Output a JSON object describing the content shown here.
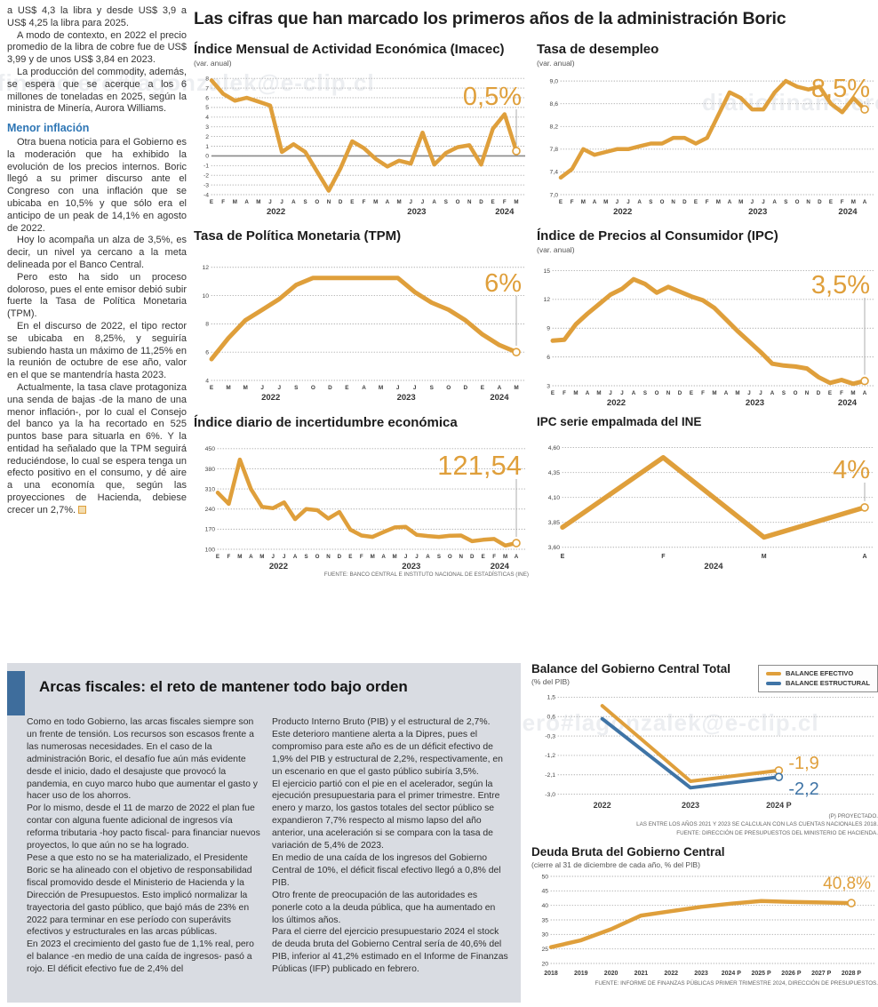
{
  "page": {
    "watermark": "diariofinanciero#lagonzalek@e-clip.cl"
  },
  "main": {
    "title": "Las cifras que han marcado los primeros años de la administración Boric"
  },
  "left_column": {
    "blocks": [
      {
        "type": "p",
        "first": true,
        "text": "a US$ 4,3 la libra y desde US$ 3,9 a US$ 4,25 la libra para 2025."
      },
      {
        "type": "p",
        "text": "A modo de contexto, en 2022 el precio promedio de la libra de cobre fue de US$ 3,99 y de unos US$ 3,84 en 2023."
      },
      {
        "type": "p",
        "text": "La producción del commodity, además, se espera que se acerque a los 6 millones de toneladas en 2025, según la ministra de Minería, Aurora Williams."
      },
      {
        "type": "subhead",
        "text": "Menor inflación"
      },
      {
        "type": "p",
        "text": "Otra buena noticia para el Gobierno es la moderación que ha exhibido la evolución de los precios internos. Boric llegó a su primer discurso ante el Congreso con una inflación que se ubicaba en 10,5% y que sólo era el anticipo de un peak de 14,1% en agosto de 2022."
      },
      {
        "type": "p",
        "text": "Hoy lo acompaña un alza de 3,5%, es decir, un nivel ya cercano a la meta delineada por el Banco Central."
      },
      {
        "type": "p",
        "text": "Pero esto ha sido un proceso doloroso, pues el ente emisor debió subir fuerte la Tasa de Política Monetaria (TPM)."
      },
      {
        "type": "p",
        "text": "En el discurso de 2022, el tipo rector se ubicaba en 8,25%, y seguiría subiendo hasta un máximo de 11,25% en la reunión de octubre de ese año, valor en el que se mantendría hasta 2023."
      },
      {
        "type": "p",
        "end_marker": true,
        "text": "Actualmente, la tasa clave protagoniza una senda de bajas -de la mano de una menor inflación-, por lo cual el Consejo del banco ya la ha recortado en 525 puntos base para situarla en 6%. Y la entidad ha señalado que la TPM seguirá reduciéndose, lo cual se espera tenga un efecto positivo en el consumo, y dé aire a una economía que, según las proyecciones de Hacienda, debiese crecer un 2,7%."
      }
    ]
  },
  "fiscal_section": {
    "title": "Arcas fiscales: el reto de mantener todo bajo orden",
    "col1_paragraphs": [
      "Como en todo Gobierno, las arcas fiscales siempre son un frente de tensión. Los recursos son escasos frente a las numerosas necesidades. En el caso de la administración Boric, el desafío fue aún más evidente desde el inicio, dado el desajuste que provocó la pandemia, en cuyo marco hubo que aumentar el gasto y hacer uso de los ahorros.",
      "Por lo mismo, desde el 11 de marzo de 2022 el plan fue contar con alguna fuente adicional de ingresos vía reforma tributaria -hoy pacto fiscal- para financiar nuevos proyectos, lo que aún no se ha logrado.",
      "Pese a que esto no se ha materializado, el Presidente Boric se ha alineado con el objetivo de responsabilidad fiscal promovido desde el Ministerio de Hacienda y la Dirección de Presupuestos. Esto implicó normalizar la trayectoria del gasto público, que bajó más de 23% en 2022 para terminar en ese período con superávits efectivos y estructurales en las arcas públicas.",
      "En 2023 el crecimiento del gasto fue de 1,1% real, pero el balance -en medio de una caída de ingresos- pasó a rojo. El déficit efectivo fue de 2,4% del"
    ],
    "col2_paragraphs": [
      "Producto Interno Bruto (PIB) y el estructural de 2,7%. Este deterioro mantiene alerta a la Dipres, pues el compromiso para este año es de un déficit efectivo de 1,9% del PIB y estructural de 2,2%, respectivamente, en un escenario en que el gasto público subiría 3,5%.",
      "El ejercicio partió con el pie en el acelerador, según la ejecución presupuestaria para el primer trimestre. Entre enero y marzo, los gastos totales del sector público se expandieron 7,7% respecto al mismo lapso del año anterior, una aceleración si se compara con la tasa de variación de 5,4% de 2023.",
      "En medio de una caída de los ingresos del Gobierno Central de 10%, el déficit fiscal efectivo llegó a 0,8% del PIB.",
      "Otro frente de preocupación de las autoridades es ponerle coto a la deuda pública, que ha aumentado en los últimos años.",
      "Para el cierre del ejercicio presupuestario 2024 el stock de deuda bruta del Gobierno Central sería de 40,6% del PIB, inferior al 41,2% estimado en el Informe de Finanzas Públicas (IFP) publicado en febrero."
    ]
  },
  "colors": {
    "orange": "#df9f3b",
    "blue": "#3f74a6",
    "grid": "#ababab",
    "drop_line": "#999999",
    "axis_text": "#444444",
    "month_text": "#3a3a3a"
  },
  "chart_data": [
    {
      "id": "imacec",
      "type": "line",
      "title": "Índice Mensual de Actividad Económica (Imacec)",
      "subtitle": "(var. anual)",
      "highlight": "0,5%",
      "ylim": [
        -4,
        8.2
      ],
      "zero_line": true,
      "y_ticks": [
        {
          "l": "8",
          "v": 8
        },
        {
          "l": "7",
          "v": 7
        },
        {
          "l": "6",
          "v": 6
        },
        {
          "l": "5",
          "v": 5
        },
        {
          "l": "4",
          "v": 4
        },
        {
          "l": "3",
          "v": 3
        },
        {
          "l": "2",
          "v": 2
        },
        {
          "l": "1",
          "v": 1
        },
        {
          "l": "0",
          "v": 0
        },
        {
          "l": "-1",
          "v": -1
        },
        {
          "l": "-2",
          "v": -2
        },
        {
          "l": "-3",
          "v": -3
        },
        {
          "l": "-4",
          "v": -4
        }
      ],
      "x_labels": [
        "E",
        "F",
        "M",
        "A",
        "M",
        "J",
        "J",
        "A",
        "S",
        "O",
        "N",
        "D",
        "E",
        "F",
        "M",
        "A",
        "M",
        "J",
        "J",
        "A",
        "S",
        "O",
        "N",
        "D",
        "E",
        "F",
        "M"
      ],
      "year_labels": [
        {
          "text": "2022",
          "at": 5.5
        },
        {
          "text": "2023",
          "at": 17.5
        },
        {
          "text": "2024",
          "at": 25
        }
      ],
      "series": [
        {
          "name": "imacec",
          "color": "orange",
          "values": [
            7.8,
            6.4,
            5.7,
            6.0,
            5.6,
            5.2,
            0.4,
            1.2,
            0.4,
            -1.6,
            -3.6,
            -1.3,
            1.5,
            0.8,
            -0.3,
            -1.1,
            -0.5,
            -0.8,
            2.4,
            -0.9,
            0.3,
            0.9,
            1.1,
            -0.9,
            2.8,
            4.3,
            0.5
          ]
        }
      ]
    },
    {
      "id": "desempleo",
      "type": "line",
      "title": "Tasa de desempleo",
      "subtitle": "(var. anual)",
      "highlight": "8,5%",
      "ylim": [
        7.0,
        9.08
      ],
      "y_ticks": [
        {
          "l": "9,0",
          "v": 9.0
        },
        {
          "l": "8,6",
          "v": 8.6
        },
        {
          "l": "8,2",
          "v": 8.2
        },
        {
          "l": "7,8",
          "v": 7.8
        },
        {
          "l": "7,4",
          "v": 7.4
        },
        {
          "l": "7,0",
          "v": 7.0
        }
      ],
      "x_labels": [
        "E",
        "F",
        "M",
        "A",
        "M",
        "J",
        "J",
        "A",
        "S",
        "O",
        "N",
        "D",
        "E",
        "F",
        "M",
        "A",
        "M",
        "J",
        "J",
        "A",
        "S",
        "O",
        "N",
        "D",
        "E",
        "F",
        "M",
        "A"
      ],
      "year_labels": [
        {
          "text": "2022",
          "at": 5.5
        },
        {
          "text": "2023",
          "at": 17.5
        },
        {
          "text": "2024",
          "at": 25.5
        }
      ],
      "series": [
        {
          "name": "desempleo",
          "color": "orange",
          "values": [
            7.3,
            7.45,
            7.8,
            7.7,
            7.75,
            7.8,
            7.8,
            7.85,
            7.9,
            7.9,
            8.0,
            8.0,
            7.9,
            8.0,
            8.4,
            8.8,
            8.7,
            8.5,
            8.5,
            8.8,
            9.0,
            8.9,
            8.85,
            8.9,
            8.6,
            8.45,
            8.7,
            8.5
          ]
        }
      ]
    },
    {
      "id": "tpm",
      "type": "line",
      "title": "Tasa de Política Monetaria (TPM)",
      "highlight": "6%",
      "ylim": [
        4,
        12.55
      ],
      "y_ticks": [
        {
          "l": "12",
          "v": 12
        },
        {
          "l": "10",
          "v": 10
        },
        {
          "l": "8",
          "v": 8
        },
        {
          "l": "6",
          "v": 6
        },
        {
          "l": "4",
          "v": 4
        }
      ],
      "x_labels": [
        "E",
        "M",
        "M",
        "J",
        "J",
        "S",
        "O",
        "D",
        "E",
        "A",
        "M",
        "J",
        "J",
        "S",
        "O",
        "D",
        "E",
        "A",
        "M"
      ],
      "year_labels": [
        {
          "text": "2022",
          "at": 3.5
        },
        {
          "text": "2023",
          "at": 11.5
        },
        {
          "text": "2024",
          "at": 17
        }
      ],
      "series": [
        {
          "name": "tpm",
          "color": "orange",
          "values": [
            5.5,
            7.0,
            8.25,
            9.0,
            9.75,
            10.75,
            11.25,
            11.25,
            11.25,
            11.25,
            11.25,
            11.25,
            10.25,
            9.5,
            9.0,
            8.25,
            7.25,
            6.5,
            6.0
          ]
        }
      ]
    },
    {
      "id": "ipc",
      "type": "line",
      "title": "Índice de Precios al Consumidor (IPC)",
      "subtitle": "(var. anual)",
      "highlight": "3,5%",
      "ylim": [
        3,
        15.6
      ],
      "y_ticks": [
        {
          "l": "15",
          "v": 15
        },
        {
          "l": "12",
          "v": 12
        },
        {
          "l": "9",
          "v": 9
        },
        {
          "l": "6",
          "v": 6
        },
        {
          "l": "3",
          "v": 3
        }
      ],
      "x_labels": [
        "E",
        "F",
        "M",
        "A",
        "M",
        "J",
        "J",
        "A",
        "S",
        "O",
        "N",
        "D",
        "E",
        "F",
        "M",
        "A",
        "M",
        "J",
        "J",
        "A",
        "S",
        "O",
        "N",
        "D",
        "E",
        "F",
        "M",
        "A"
      ],
      "year_labels": [
        {
          "text": "2022",
          "at": 5.5
        },
        {
          "text": "2023",
          "at": 17.5
        },
        {
          "text": "2024",
          "at": 25.5
        }
      ],
      "series": [
        {
          "name": "ipc",
          "color": "orange",
          "values": [
            7.7,
            7.8,
            9.4,
            10.5,
            11.5,
            12.5,
            13.1,
            14.1,
            13.6,
            12.7,
            13.3,
            12.8,
            12.3,
            11.9,
            11.1,
            9.9,
            8.7,
            7.6,
            6.5,
            5.3,
            5.1,
            5.0,
            4.8,
            3.9,
            3.3,
            3.6,
            3.2,
            3.5
          ]
        }
      ]
    },
    {
      "id": "incertidumbre",
      "type": "line",
      "title": "Índice diario de incertidumbre económica",
      "highlight": "121,54",
      "ylim": [
        100,
        465
      ],
      "y_ticks": [
        {
          "l": "450",
          "v": 450
        },
        {
          "l": "380",
          "v": 380
        },
        {
          "l": "310",
          "v": 310
        },
        {
          "l": "240",
          "v": 240
        },
        {
          "l": "170",
          "v": 170
        },
        {
          "l": "100",
          "v": 100
        }
      ],
      "x_labels": [
        "E",
        "F",
        "M",
        "A",
        "M",
        "J",
        "J",
        "A",
        "S",
        "O",
        "N",
        "D",
        "E",
        "F",
        "M",
        "A",
        "M",
        "J",
        "J",
        "A",
        "S",
        "O",
        "N",
        "D",
        "E",
        "F",
        "M",
        "A"
      ],
      "year_labels": [
        {
          "text": "2022",
          "at": 5.5
        },
        {
          "text": "2023",
          "at": 17.5
        },
        {
          "text": "2024",
          "at": 25.5
        }
      ],
      "series": [
        {
          "name": "incertidumbre",
          "color": "orange",
          "values": [
            297,
            258,
            412,
            310,
            248,
            243,
            263,
            205,
            240,
            236,
            207,
            230,
            168,
            148,
            143,
            160,
            176,
            178,
            150,
            146,
            143,
            147,
            148,
            128,
            133,
            136,
            113,
            121.54
          ]
        }
      ],
      "source": "FUENTE: BANCO CENTRAL E INSTITUTO NACIONAL DE ESTADÍSTICAS (INE)"
    },
    {
      "id": "ipc_ine",
      "type": "line",
      "title": "IPC serie empalmada del INE",
      "highlight": "4%",
      "ylim": [
        3.58,
        4.65
      ],
      "y_ticks": [
        {
          "l": "4,60",
          "v": 4.6
        },
        {
          "l": "4,35",
          "v": 4.35
        },
        {
          "l": "4,10",
          "v": 4.1
        },
        {
          "l": "3,85",
          "v": 3.85
        },
        {
          "l": "3,60",
          "v": 3.6
        }
      ],
      "x_labels": [
        "E",
        "F",
        "M",
        "A"
      ],
      "year_labels": [
        {
          "text": "2024",
          "at": 1.5
        }
      ],
      "series": [
        {
          "name": "ipc_empalmada",
          "color": "orange",
          "values": [
            3.8,
            4.5,
            3.7,
            4.0
          ]
        }
      ]
    },
    {
      "id": "balance",
      "type": "line",
      "title": "Balance del Gobierno Central Total",
      "subtitle": "(% del PIB)",
      "ylim": [
        -3.1,
        1.6
      ],
      "y_ticks": [
        {
          "l": "1,5",
          "v": 1.5
        },
        {
          "l": "0,6",
          "v": 0.6
        },
        {
          "l": "-0,3",
          "v": -0.3
        },
        {
          "l": "-1,2",
          "v": -1.2
        },
        {
          "l": "-2,1",
          "v": -2.1
        },
        {
          "l": "-3,0",
          "v": -3.0
        }
      ],
      "x_labels": [
        "2022",
        "2023",
        "2024 P"
      ],
      "legend": [
        {
          "label": "BALANCE EFECTIVO",
          "color": "orange"
        },
        {
          "label": "BALANCE ESTRUCTURAL",
          "color": "blue"
        }
      ],
      "series": [
        {
          "name": "balance_efectivo",
          "color": "orange",
          "values": [
            1.1,
            -2.4,
            -1.9
          ],
          "end_label": "-1,9",
          "label_dy": -2
        },
        {
          "name": "balance_estructural",
          "color": "blue",
          "values": [
            0.5,
            -2.7,
            -2.2
          ],
          "end_label": "-2,2",
          "label_dy": 20
        }
      ],
      "notes": [
        "(P) PROYECTADO.",
        "LAS ENTRE LOS AÑOS 2021 Y 2023 SE CALCULAN  CON LAS CUENTAS NACIONALES 2018.",
        "FUENTE: DIRECCIÓN DE PRESUPUESTOS DEL MINISTERIO DE HACIENDA."
      ]
    },
    {
      "id": "deuda",
      "type": "line",
      "title": "Deuda Bruta del Gobierno Central",
      "subtitle": "(cierre al 31 de diciembre de cada año, % del PIB)",
      "highlight": "40,8%",
      "ylim": [
        20,
        50
      ],
      "y_ticks": [
        {
          "l": "50",
          "v": 50
        },
        {
          "l": "45",
          "v": 45
        },
        {
          "l": "40",
          "v": 40
        },
        {
          "l": "35",
          "v": 35
        },
        {
          "l": "30",
          "v": 30
        },
        {
          "l": "25",
          "v": 25
        },
        {
          "l": "20",
          "v": 20
        }
      ],
      "x_labels": [
        "2018",
        "2019",
        "2020",
        "2021",
        "2022",
        "2023",
        "2024 P",
        "2025 P",
        "2026 P",
        "2027 P",
        "2028 P"
      ],
      "series": [
        {
          "name": "deuda_bruta",
          "color": "orange",
          "values": [
            25.6,
            28.0,
            31.8,
            36.5,
            38.0,
            39.5,
            40.6,
            41.5,
            41.2,
            41.0,
            40.8
          ]
        }
      ],
      "source": "FUENTE: INFORME DE FINANZAS PÚBLICAS PRIMER TRIMESTRE 2024, DIRECCIÓN DE PRESUPUESTOS."
    }
  ]
}
